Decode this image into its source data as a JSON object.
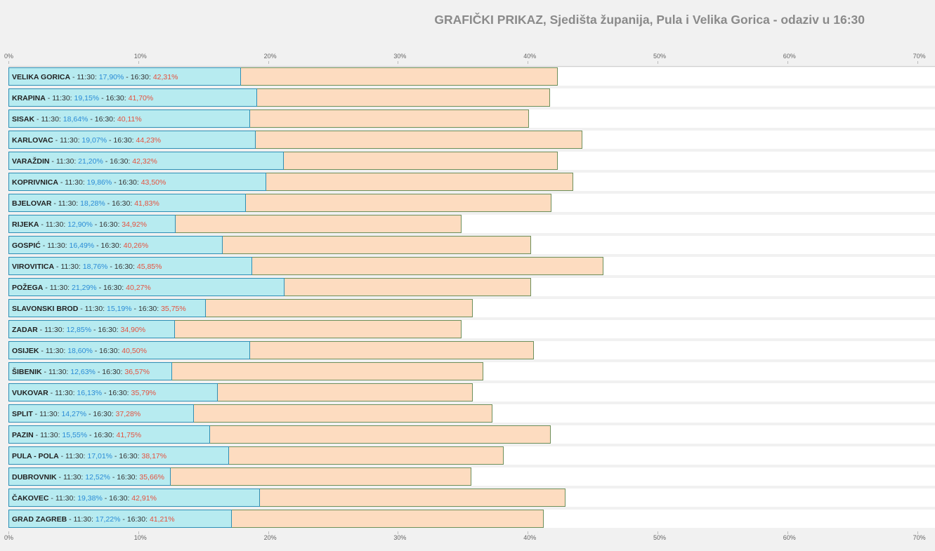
{
  "title": "GRAFIČKI PRIKAZ, Sjedišta županija, Pula i Velika Gorica - odaziv u 16:30",
  "chart_data": {
    "type": "bar",
    "orientation": "horizontal",
    "title": "GRAFIČKI PRIKAZ, Sjedišta županija, Pula i Velika Gorica - odaziv u 16:30",
    "xlim": [
      0,
      70
    ],
    "ticks": [
      "0%",
      "10%",
      "20%",
      "30%",
      "40%",
      "50%",
      "60%",
      "70%"
    ],
    "time_early": "11:30",
    "time_late": "16:30",
    "categories": [
      "VELIKA GORICA",
      "KRAPINA",
      "SISAK",
      "KARLOVAC",
      "VARAŽDIN",
      "KOPRIVNICA",
      "BJELOVAR",
      "RIJEKA",
      "GOSPIĆ",
      "VIROVITICA",
      "POŽEGA",
      "SLAVONSKI BROD",
      "ZADAR",
      "OSIJEK",
      "ŠIBENIK",
      "VUKOVAR",
      "SPLIT",
      "PAZIN",
      "PULA - POLA",
      "DUBROVNIK",
      "ČAKOVEC",
      "GRAD ZAGREB"
    ],
    "series": [
      {
        "name": "11:30",
        "color": "#b7ebf0",
        "values": [
          17.9,
          19.15,
          18.64,
          19.07,
          21.2,
          19.86,
          18.28,
          12.9,
          16.49,
          18.76,
          21.29,
          15.19,
          12.85,
          18.6,
          12.63,
          16.13,
          14.27,
          15.55,
          17.01,
          12.52,
          19.38,
          17.22
        ],
        "labels": [
          "17,90%",
          "19,15%",
          "18,64%",
          "19,07%",
          "21,20%",
          "19,86%",
          "18,28%",
          "12,90%",
          "16,49%",
          "18,76%",
          "21,29%",
          "15,19%",
          "12,85%",
          "18,60%",
          "12,63%",
          "16,13%",
          "14,27%",
          "15,55%",
          "17,01%",
          "12,52%",
          "19,38%",
          "17,22%"
        ]
      },
      {
        "name": "16:30",
        "color": "#fddcc0",
        "values": [
          42.31,
          41.7,
          40.11,
          44.23,
          42.32,
          43.5,
          41.83,
          34.92,
          40.26,
          45.85,
          40.27,
          35.75,
          34.9,
          40.5,
          36.57,
          35.79,
          37.28,
          41.75,
          38.17,
          35.66,
          42.91,
          41.21
        ],
        "labels": [
          "42,31%",
          "41,70%",
          "40,11%",
          "44,23%",
          "42,32%",
          "43,50%",
          "41,83%",
          "34,92%",
          "40,26%",
          "45,85%",
          "40,27%",
          "35,75%",
          "34,90%",
          "40,50%",
          "36,57%",
          "35,79%",
          "37,28%",
          "41,75%",
          "38,17%",
          "35,66%",
          "42,91%",
          "41,21%"
        ]
      }
    ]
  }
}
